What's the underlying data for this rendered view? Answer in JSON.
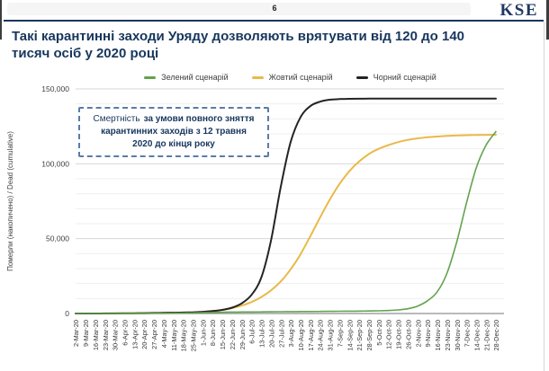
{
  "header": {
    "page_number": "6",
    "logo_text": "KSE"
  },
  "title": {
    "line1": "Такі карантинні заходи Уряду дозволяють врятувати від 120 до 140",
    "line2": "тисяч осіб у 2020 році"
  },
  "annotation": {
    "line1_lead": "Смертність",
    "line1_bold": "за умови повного зняття",
    "line2": "карантинних заходів з 12 травня",
    "line3": "2020 до кінця року"
  },
  "colors": {
    "title_navy": "#17365D",
    "logo_navy": "#1F3864",
    "annotation_border": "#5a7ca6",
    "grid_minor": "#efefef",
    "grid_major": "#d7d7d7",
    "axis_line": "#8f8f8f",
    "tick_text": "#3f3f3f",
    "green": "#63A24F",
    "yellow": "#E9B949",
    "black": "#242424"
  },
  "chart_data": {
    "type": "line",
    "title": "",
    "xlabel": "",
    "ylabel": "Померли (накопичено) / Dead (cumulative)",
    "ylim": [
      0,
      150000
    ],
    "yticks": [
      0,
      50000,
      100000,
      150000
    ],
    "ytick_labels": [
      "0",
      "50,000",
      "100,000",
      "150,000"
    ],
    "minor_grid_step": 10000,
    "grid": "horizontal",
    "legend_position": "top-center",
    "x_labels": [
      "2-Mar-20",
      "9-Mar-20",
      "16-Mar-20",
      "23-Mar-20",
      "30-Mar-20",
      "6-Apr-20",
      "13-Apr-20",
      "20-Apr-20",
      "27-Apr-20",
      "4-May-20",
      "11-May-20",
      "18-May-20",
      "25-May-20",
      "1-Jun-20",
      "8-Jun-20",
      "15-Jun-20",
      "22-Jun-20",
      "29-Jun-20",
      "6-Jul-20",
      "13-Jul-20",
      "20-Jul-20",
      "27-Jul-20",
      "3-Aug-20",
      "10-Aug-20",
      "17-Aug-20",
      "24-Aug-20",
      "31-Aug-20",
      "7-Sep-20",
      "14-Sep-20",
      "21-Sep-20",
      "28-Sep-20",
      "5-Oct-20",
      "12-Oct-20",
      "19-Oct-20",
      "26-Oct-20",
      "2-Nov-20",
      "9-Nov-20",
      "16-Nov-20",
      "23-Nov-20",
      "30-Nov-20",
      "7-Dec-20",
      "14-Dec-20",
      "21-Dec-20",
      "28-Dec-20"
    ],
    "series": [
      {
        "key": "green",
        "name": "Зелений сценарій",
        "color": "#63A24F",
        "values": [
          0,
          0,
          0,
          10,
          20,
          40,
          60,
          90,
          120,
          150,
          200,
          300,
          450,
          600,
          750,
          850,
          950,
          1000,
          1050,
          1100,
          1150,
          1200,
          1250,
          1300,
          1350,
          1400,
          1450,
          1500,
          1550,
          1600,
          1700,
          1800,
          2000,
          2400,
          3200,
          5000,
          8500,
          14500,
          27000,
          48000,
          74000,
          97500,
          112500,
          121500
        ]
      },
      {
        "key": "yellow",
        "name": "Жовтий сценарій",
        "color": "#E9B949",
        "values": [
          0,
          0,
          0,
          20,
          50,
          90,
          140,
          200,
          270,
          350,
          450,
          600,
          800,
          1100,
          1600,
          2400,
          3600,
          5300,
          7700,
          11000,
          15500,
          21500,
          29500,
          39500,
          51500,
          64000,
          76000,
          86500,
          95000,
          101500,
          106500,
          110000,
          112500,
          114500,
          116000,
          117000,
          117700,
          118200,
          118600,
          118900,
          119100,
          119250,
          119350,
          119400
        ]
      },
      {
        "key": "black",
        "name": "Чорний сценарій",
        "color": "#242424",
        "values": [
          0,
          0,
          0,
          30,
          70,
          120,
          180,
          250,
          330,
          420,
          520,
          650,
          850,
          1150,
          1600,
          2400,
          3900,
          6800,
          12500,
          24000,
          49000,
          85000,
          114500,
          131000,
          138500,
          141500,
          142800,
          143200,
          143400,
          143450,
          143500,
          143500,
          143500,
          143500,
          143500,
          143500,
          143500,
          143500,
          143500,
          143500,
          143500,
          143500,
          143500,
          143500
        ]
      }
    ]
  }
}
